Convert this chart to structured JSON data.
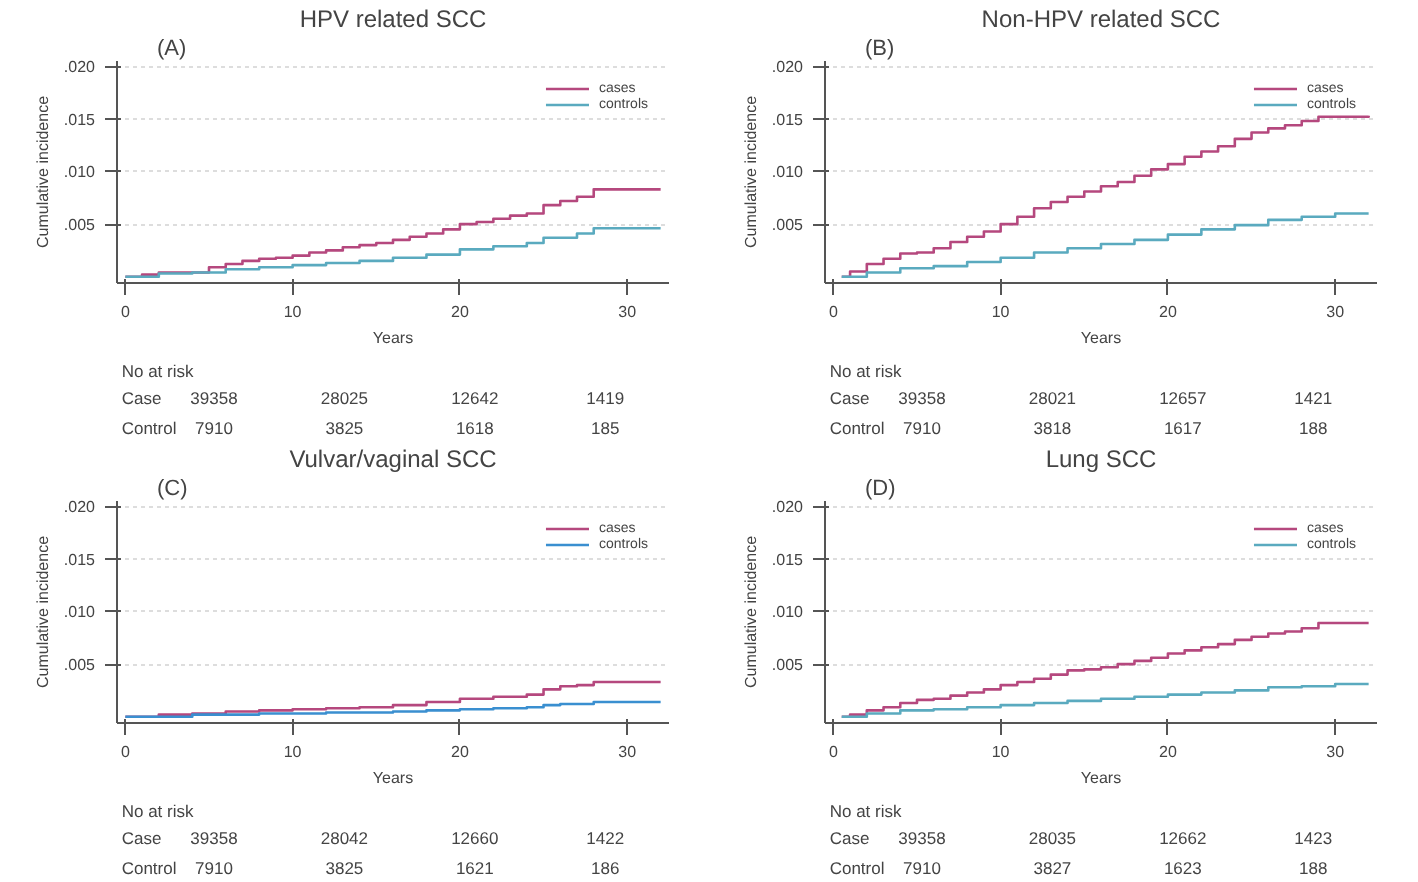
{
  "chart_data": [
    {
      "type": "step",
      "subtitle": "(A)",
      "title": "HPV related SCC",
      "xlabel": "Years",
      "ylabel": "Cumulative incidence",
      "xlim": [
        -0.5,
        32.5
      ],
      "ylim": [
        -0.0006,
        0.0205
      ],
      "xticks": [
        0,
        10,
        20,
        30
      ],
      "yticks": [
        {
          "value": 0.005,
          "label": ".005"
        },
        {
          "value": 0.01,
          "label": ".010"
        },
        {
          "value": 0.015,
          "label": ".015"
        },
        {
          "value": 0.02,
          "label": ".020"
        }
      ],
      "grid": "y",
      "legend": "top right",
      "series": [
        {
          "name": "cases",
          "color": "#b5487e",
          "x": [
            0,
            1,
            2,
            3.5,
            5,
            6,
            7,
            8,
            9,
            10,
            11,
            12,
            13,
            14,
            15,
            16,
            17,
            18,
            19,
            20,
            21,
            22,
            23,
            24,
            25,
            26,
            27,
            28,
            32
          ],
          "values": [
            0,
            0.0002,
            0.0004,
            0.0004,
            0.0009,
            0.0012,
            0.0015,
            0.0017,
            0.0018,
            0.002,
            0.0023,
            0.0025,
            0.0028,
            0.003,
            0.0032,
            0.0035,
            0.0038,
            0.0041,
            0.0045,
            0.005,
            0.0052,
            0.0055,
            0.0058,
            0.006,
            0.0068,
            0.0072,
            0.0076,
            0.0083,
            0.0083
          ]
        },
        {
          "name": "controls",
          "color": "#5aaabf",
          "x": [
            0,
            2,
            4,
            6,
            8,
            10,
            12,
            14,
            16,
            18,
            20,
            22,
            24,
            25,
            27,
            28,
            32
          ],
          "values": [
            0,
            0.0003,
            0.0004,
            0.0007,
            0.0009,
            0.0011,
            0.0013,
            0.0015,
            0.0018,
            0.0021,
            0.0026,
            0.0029,
            0.0032,
            0.0037,
            0.0041,
            0.0046,
            0.0046
          ]
        }
      ],
      "annotations": [
        "No at risk",
        "Case",
        "39358",
        "28025",
        "12642",
        "1419",
        "Control",
        "7910",
        "3825",
        "1618",
        "185"
      ]
    },
    {
      "type": "step",
      "subtitle": "(B)",
      "title": "Non-HPV related SCC",
      "xlabel": "Years",
      "ylabel": "Cumulative incidence",
      "xlim": [
        -0.5,
        32.5
      ],
      "ylim": [
        -0.0006,
        0.0205
      ],
      "xticks": [
        0,
        10,
        20,
        30
      ],
      "yticks": [
        {
          "value": 0.005,
          "label": ".005"
        },
        {
          "value": 0.01,
          "label": ".010"
        },
        {
          "value": 0.015,
          "label": ".015"
        },
        {
          "value": 0.02,
          "label": ".020"
        }
      ],
      "grid": "y",
      "legend": "top right",
      "series": [
        {
          "name": "cases",
          "color": "#b5487e",
          "x": [
            0.5,
            1,
            2,
            3,
            4,
            5,
            6,
            7,
            8,
            9,
            10,
            11,
            12,
            13,
            14,
            15,
            16,
            17,
            18,
            19,
            20,
            21,
            22,
            23,
            24,
            25,
            26,
            27,
            28,
            29,
            32
          ],
          "values": [
            0,
            0.0005,
            0.0012,
            0.0017,
            0.0022,
            0.0023,
            0.0027,
            0.0033,
            0.0038,
            0.0043,
            0.005,
            0.0057,
            0.0065,
            0.0071,
            0.0076,
            0.0081,
            0.0086,
            0.009,
            0.0096,
            0.0102,
            0.0107,
            0.0114,
            0.0119,
            0.0124,
            0.0131,
            0.0137,
            0.0141,
            0.0144,
            0.0148,
            0.0152,
            0.0153
          ]
        },
        {
          "name": "controls",
          "color": "#5aaabf",
          "x": [
            0.5,
            2,
            4,
            6,
            8,
            10,
            12,
            14,
            16,
            18,
            20,
            22,
            24,
            26,
            28,
            30,
            32
          ],
          "values": [
            0,
            0.0004,
            0.0008,
            0.001,
            0.0014,
            0.0018,
            0.0023,
            0.0027,
            0.0031,
            0.0035,
            0.004,
            0.0045,
            0.0049,
            0.0054,
            0.0057,
            0.006,
            0.006
          ]
        }
      ],
      "annotations": [
        "No at risk",
        "Case",
        "39358",
        "28021",
        "12657",
        "1421",
        "Control",
        "7910",
        "3818",
        "1617",
        "188"
      ]
    },
    {
      "type": "step",
      "subtitle": "(C)",
      "title": "Vulvar/vaginal SCC",
      "xlabel": "Years",
      "ylabel": "Cumulative incidence",
      "xlim": [
        -0.5,
        32.5
      ],
      "ylim": [
        -0.0006,
        0.0205
      ],
      "xticks": [
        0,
        10,
        20,
        30
      ],
      "yticks": [
        {
          "value": 0.005,
          "label": ".005"
        },
        {
          "value": 0.01,
          "label": ".010"
        },
        {
          "value": 0.015,
          "label": ".015"
        },
        {
          "value": 0.02,
          "label": ".020"
        }
      ],
      "grid": "y",
      "legend": "top right",
      "series": [
        {
          "name": "cases",
          "color": "#b5487e",
          "x": [
            0,
            2,
            4,
            6,
            8,
            10,
            12,
            14,
            16,
            18,
            20,
            22,
            24,
            25,
            26,
            27,
            28,
            32
          ],
          "values": [
            0,
            0.0002,
            0.0003,
            0.0005,
            0.0006,
            0.0007,
            0.0008,
            0.0009,
            0.0011,
            0.0014,
            0.0017,
            0.0019,
            0.0021,
            0.0026,
            0.0029,
            0.003,
            0.0033,
            0.0033
          ]
        },
        {
          "name": "controls",
          "color": "#3a8fd0",
          "x": [
            0,
            4,
            8,
            12,
            16,
            18,
            20,
            22,
            24,
            25,
            26,
            28,
            32
          ],
          "values": [
            0,
            0.0002,
            0.0003,
            0.0004,
            0.0005,
            0.0006,
            0.0007,
            0.0008,
            0.0009,
            0.0011,
            0.0012,
            0.0014,
            0.0014
          ]
        }
      ],
      "annotations": [
        "No at risk",
        "Case",
        "39358",
        "28042",
        "12660",
        "1422",
        "Control",
        "7910",
        "3825",
        "1621",
        "186"
      ]
    },
    {
      "type": "step",
      "subtitle": "(D)",
      "title": "Lung SCC",
      "xlabel": "Years",
      "ylabel": "Cumulative incidence",
      "xlim": [
        -0.5,
        32.5
      ],
      "ylim": [
        -0.0006,
        0.0205
      ],
      "xticks": [
        0,
        10,
        20,
        30
      ],
      "yticks": [
        {
          "value": 0.005,
          "label": ".005"
        },
        {
          "value": 0.01,
          "label": ".010"
        },
        {
          "value": 0.015,
          "label": ".015"
        },
        {
          "value": 0.02,
          "label": ".020"
        }
      ],
      "grid": "y",
      "legend": "top right",
      "series": [
        {
          "name": "cases",
          "color": "#b5487e",
          "x": [
            0.5,
            1,
            2,
            3,
            4,
            5,
            6,
            7,
            8,
            9,
            10,
            11,
            12,
            13,
            14,
            15,
            16,
            17,
            18,
            19,
            20,
            21,
            22,
            23,
            24,
            25,
            26,
            27,
            28,
            29,
            32
          ],
          "values": [
            0,
            0.0002,
            0.0006,
            0.0009,
            0.0013,
            0.0016,
            0.0017,
            0.002,
            0.0023,
            0.0026,
            0.003,
            0.0033,
            0.0036,
            0.004,
            0.0044,
            0.0045,
            0.0047,
            0.005,
            0.0053,
            0.0056,
            0.006,
            0.0063,
            0.0066,
            0.0069,
            0.0073,
            0.0076,
            0.0079,
            0.0081,
            0.0084,
            0.0089,
            0.0089
          ]
        },
        {
          "name": "controls",
          "color": "#5aaabf",
          "x": [
            0.5,
            2,
            4,
            6,
            8,
            10,
            12,
            14,
            16,
            18,
            20,
            22,
            24,
            26,
            28,
            30,
            32
          ],
          "values": [
            0,
            0.0003,
            0.0006,
            0.0007,
            0.0009,
            0.0011,
            0.0013,
            0.0015,
            0.0017,
            0.0019,
            0.0021,
            0.0023,
            0.0025,
            0.0028,
            0.0029,
            0.0031,
            0.0031
          ]
        }
      ],
      "annotations": [
        "No at risk",
        "Case",
        "39358",
        "28035",
        "12662",
        "1423",
        "Control",
        "7910",
        "3827",
        "1623",
        "188"
      ]
    }
  ]
}
